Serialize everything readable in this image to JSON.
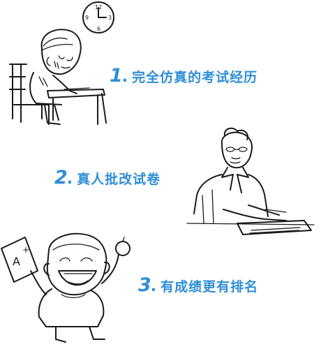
{
  "features": [
    {
      "number": "1",
      "dot": ".",
      "text": "完全仿真的考试经历"
    },
    {
      "number": "2",
      "dot": ".",
      "text": "真人批改试卷"
    },
    {
      "number": "3",
      "dot": ".",
      "text": "有成绩更有排名"
    }
  ],
  "clock": {
    "twelve": "12",
    "three": "3",
    "six": "6",
    "nine": "9"
  },
  "grade": {
    "letter": "A",
    "plus": "+"
  },
  "colors": {
    "accent": "#2f8fd6",
    "ink": "#1a1a1a"
  }
}
